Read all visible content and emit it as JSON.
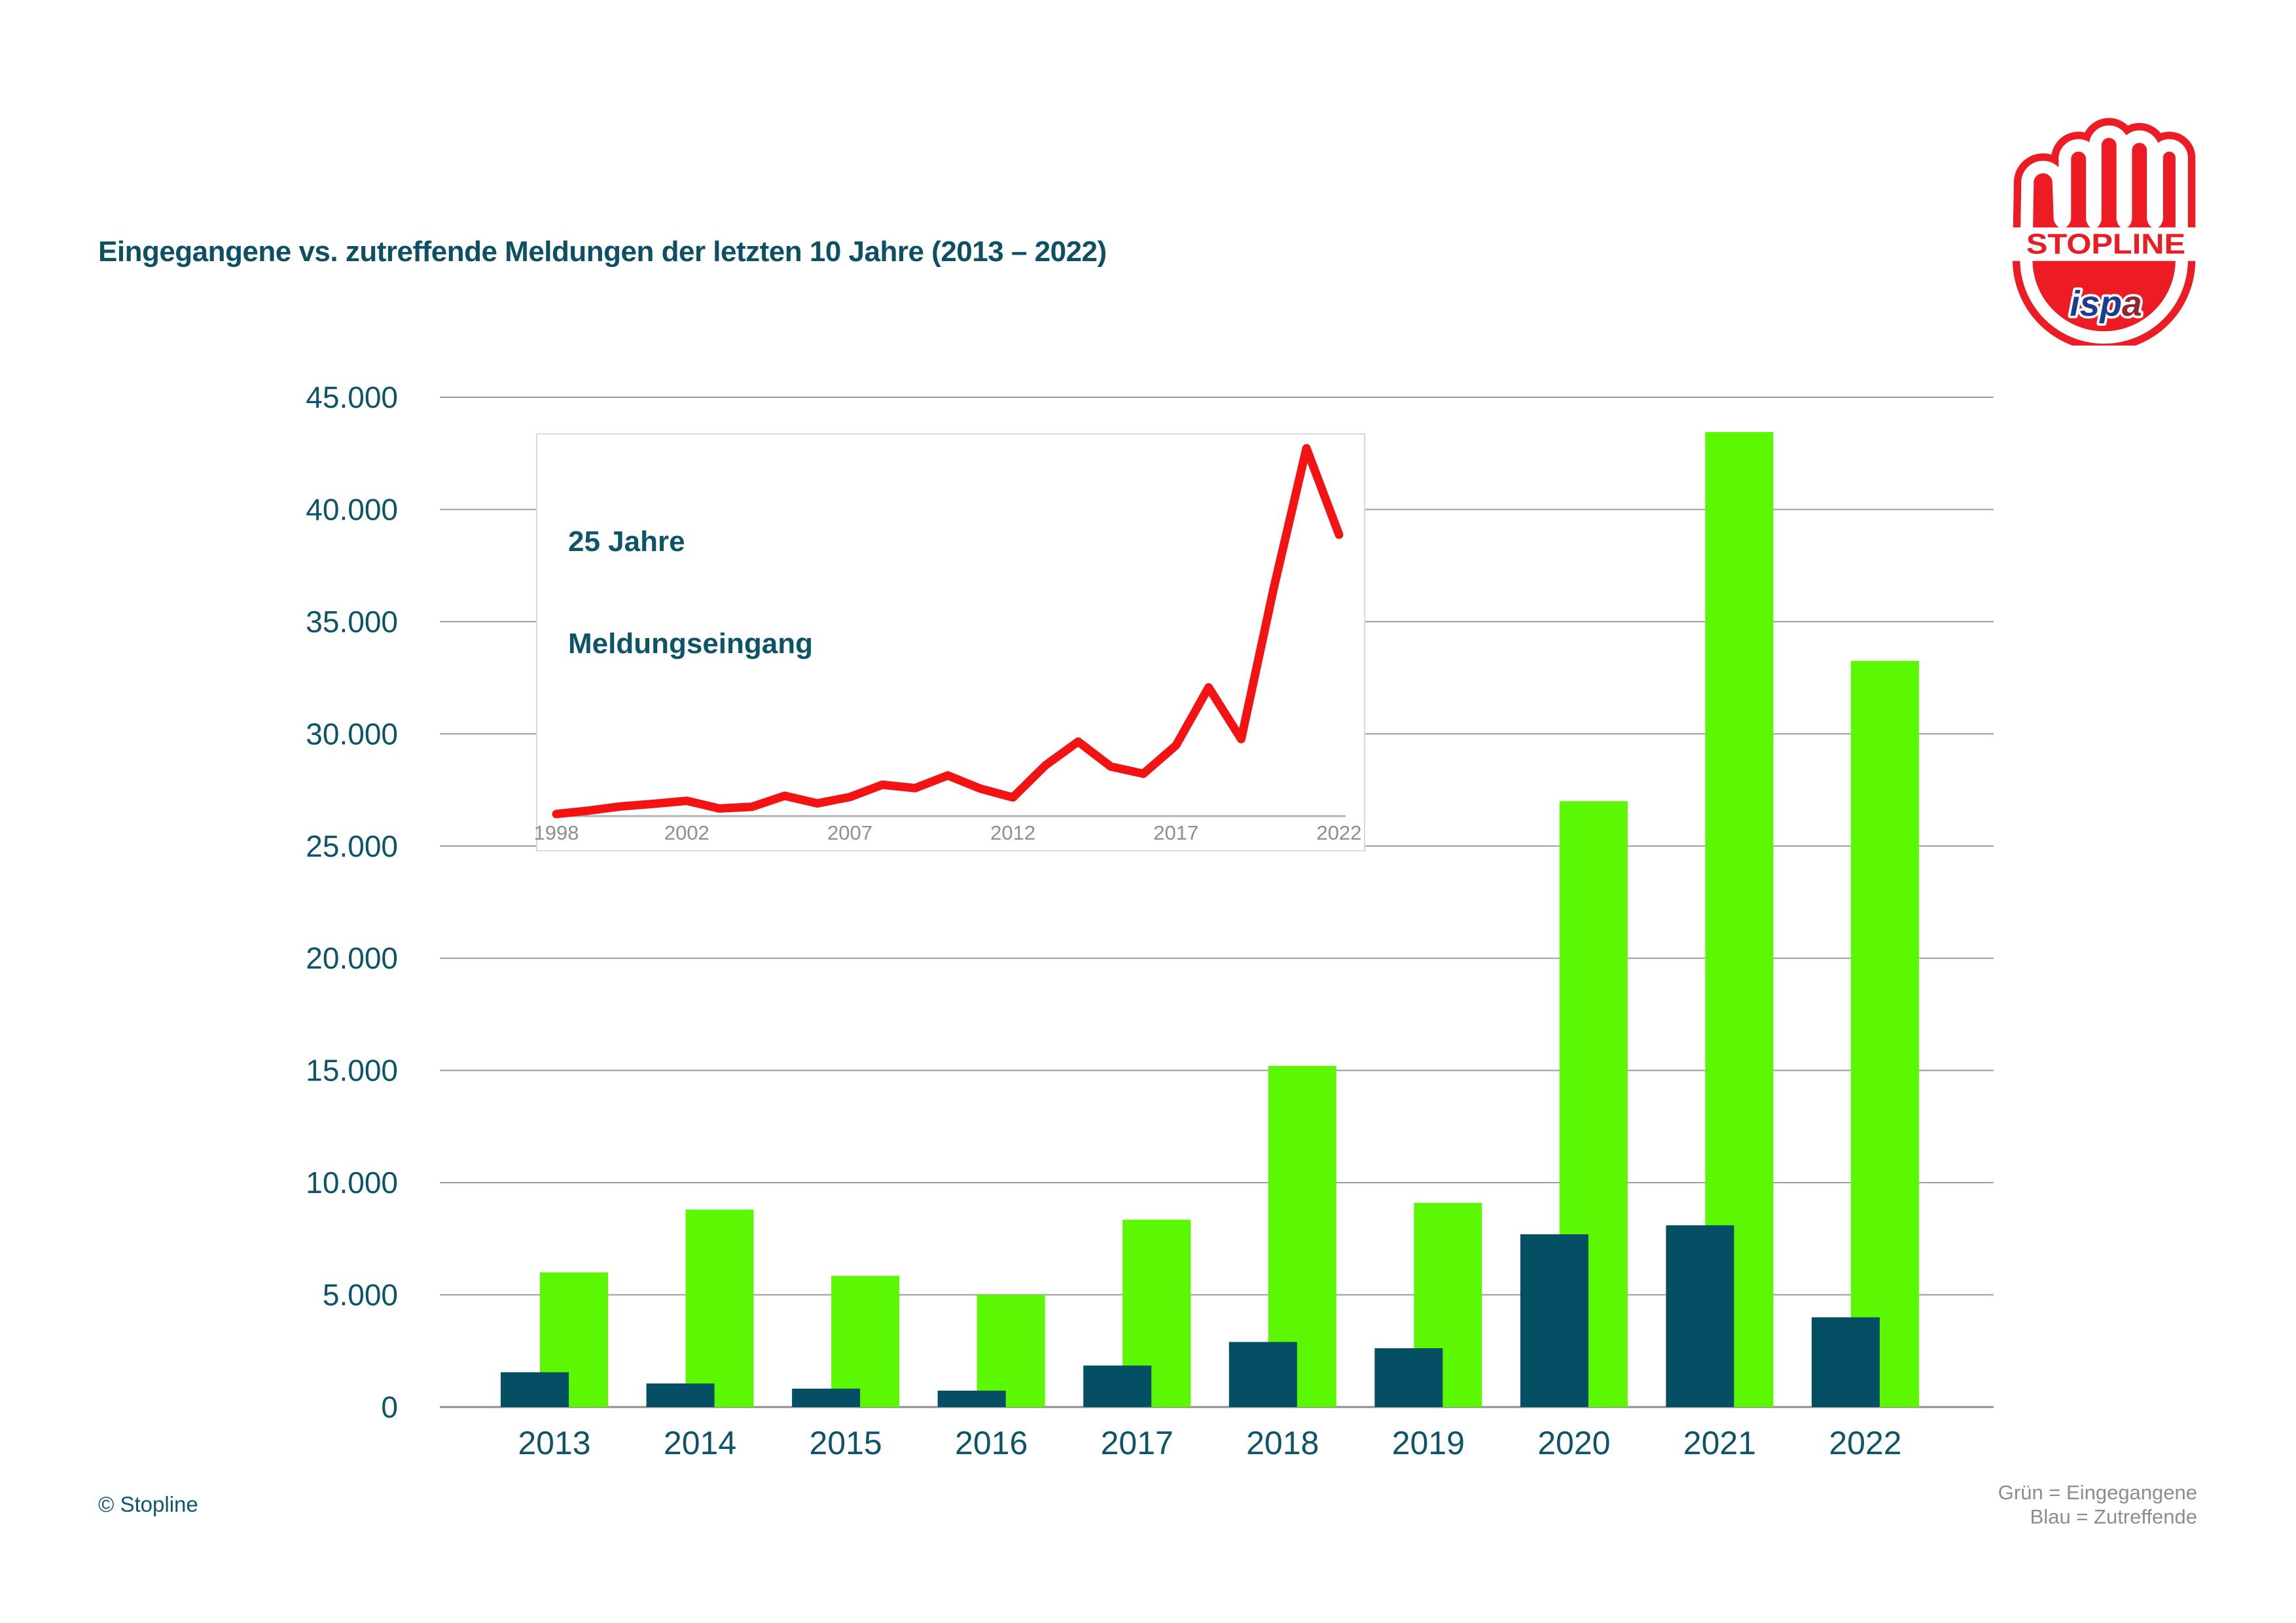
{
  "header": {
    "title": "Eingegangene vs. zutreffende Meldungen der letzten 10 Jahre (2013 – 2022)"
  },
  "logo": {
    "name": "Stopline ispa logo",
    "stopline_label": "STOPLINE",
    "ispa_prefix": "isp",
    "ispa_last": "a",
    "red": "#ed1c24",
    "ispa_blue": "#1d3d91",
    "ispa_maroon": "#93252e"
  },
  "footer": {
    "copyright": "© Stopline",
    "legend_line1": "Grün = Eingegangene",
    "legend_line2": "Blau = Zutreffende"
  },
  "colors": {
    "green": "#5cf702",
    "blue": "#044f63",
    "teal_text": "#0d5468",
    "red_line": "#f31313",
    "grid_gray": "#9b9b9b",
    "axis_gray": "#8f8f8f",
    "inset_border": "#d9d9d9",
    "inset_axis": "#b3b3b3",
    "inset_label_gray": "#8e8e8e",
    "legend_gray": "#8d8d8d"
  },
  "chart_data": [
    {
      "type": "bar",
      "title": "Eingegangene vs. zutreffende Meldungen der letzten 10 Jahre (2013 – 2022)",
      "categories": [
        "2013",
        "2014",
        "2015",
        "2016",
        "2017",
        "2018",
        "2019",
        "2020",
        "2021",
        "2022"
      ],
      "series": [
        {
          "name": "Eingegangene",
          "color": "#5cf702",
          "values": [
            6000,
            8800,
            5850,
            5000,
            8350,
            15200,
            9100,
            27000,
            43450,
            33250
          ]
        },
        {
          "name": "Zutreffende",
          "color": "#044f63",
          "values": [
            1550,
            1050,
            820,
            730,
            1850,
            2900,
            2620,
            7700,
            8100,
            4000
          ]
        }
      ],
      "ylim": [
        0,
        45000
      ],
      "ytick_step": 5000,
      "ytick_labels": [
        "0",
        "5.000",
        "10.000",
        "15.000",
        "20.000",
        "25.000",
        "30.000",
        "35.000",
        "40.000",
        "45.000"
      ],
      "grid": true,
      "legend_note": "Grün = Eingegangene / Blau = Zutreffende (bottom right, outside plot)"
    },
    {
      "type": "line",
      "title": "25 Jahre Meldungseingang",
      "title_lines": [
        "25 Jahre",
        "Meldungseingang"
      ],
      "x": [
        1998,
        1999,
        2000,
        2001,
        2002,
        2003,
        2004,
        2005,
        2006,
        2007,
        2008,
        2009,
        2010,
        2011,
        2012,
        2013,
        2014,
        2015,
        2016,
        2017,
        2018,
        2019,
        2020,
        2021,
        2022
      ],
      "values": [
        250,
        650,
        1150,
        1450,
        1800,
        900,
        1100,
        2400,
        1500,
        2250,
        3700,
        3300,
        4800,
        3250,
        2200,
        6000,
        8800,
        5850,
        5000,
        8350,
        15200,
        9100,
        27000,
        43450,
        33250
      ],
      "xtick_labels": [
        "1998",
        "2002",
        "2007",
        "2012",
        "2017",
        "2022"
      ],
      "xtick_years": [
        1998,
        2002,
        2007,
        2012,
        2017,
        2022
      ],
      "ylim": [
        0,
        45000
      ],
      "color": "#f31313",
      "grid": false,
      "position": "inset overlay, upper left of main plot"
    }
  ]
}
